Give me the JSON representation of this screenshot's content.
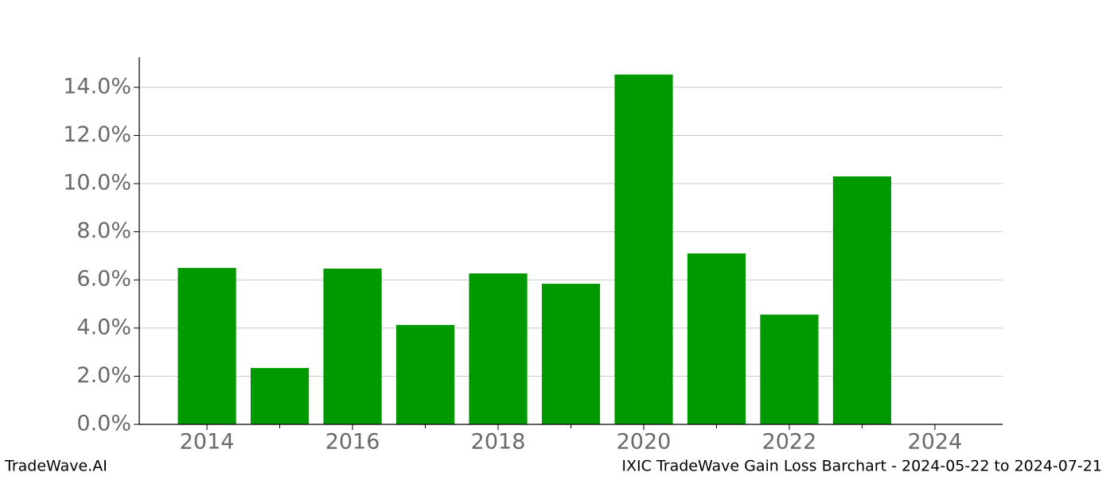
{
  "chart_data": {
    "type": "bar",
    "x": [
      2014,
      2015,
      2016,
      2017,
      2018,
      2019,
      2020,
      2021,
      2022,
      2023
    ],
    "values": [
      6.5,
      2.34,
      6.47,
      4.13,
      6.27,
      5.84,
      14.53,
      7.1,
      4.56,
      10.3
    ],
    "color": "#009900",
    "xlim": [
      2013.07,
      2024.93
    ],
    "xticks": [
      2014,
      2016,
      2018,
      2020,
      2022,
      2024
    ],
    "xminorticks": [
      2015,
      2017,
      2019,
      2021,
      2023
    ],
    "ylim": [
      0,
      15.25
    ],
    "yticks": [
      {
        "value": 0,
        "label": "0.0%"
      },
      {
        "value": 2,
        "label": "2.0%"
      },
      {
        "value": 4,
        "label": "4.0%"
      },
      {
        "value": 6,
        "label": "6.0%"
      },
      {
        "value": 8,
        "label": "8.0%"
      },
      {
        "value": 10,
        "label": "10.0%"
      },
      {
        "value": 12,
        "label": "12.0%"
      },
      {
        "value": 14,
        "label": "14.0%"
      }
    ],
    "grid": true,
    "footer_left": "TradeWave.AI",
    "footer_right": "IXIC TradeWave Gain Loss Barchart - 2024-05-22 to 2024-07-21"
  }
}
